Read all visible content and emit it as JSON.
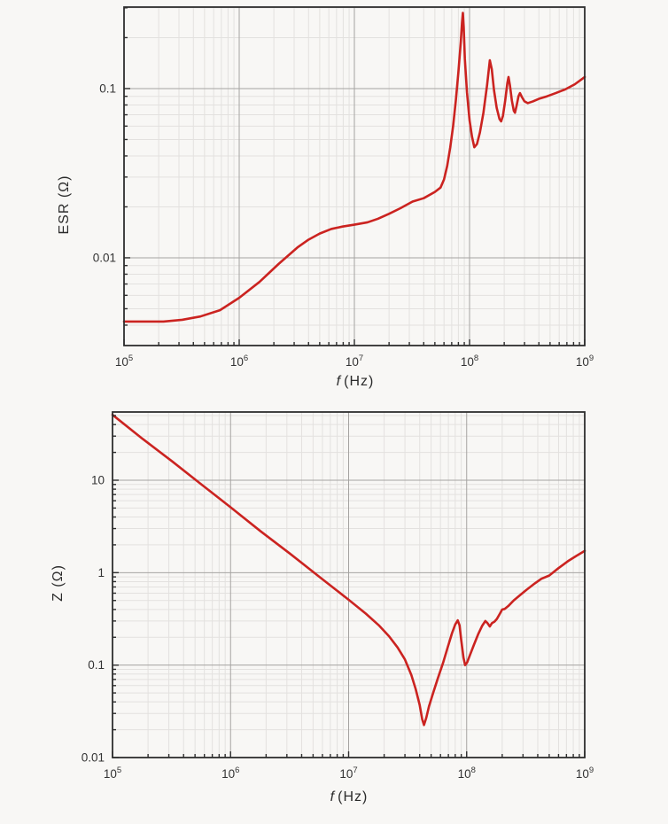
{
  "styles": {
    "page_bg": "#f8f7f5",
    "curve_red": "#cb2320",
    "grid_major": "#a5a3a1",
    "grid_minor": "#e3e1df",
    "frame": "#2e2e2e",
    "text": "#333333"
  },
  "chart_data": [
    {
      "type": "line",
      "name": "esr-vs-frequency",
      "title": "",
      "ylabel": "ESR (Ω)",
      "xlabel_f": "f",
      "xlabel_unit": "(Hz)",
      "xlim": [
        100000.0,
        1000000000.0
      ],
      "ylim": [
        0.00303,
        0.303
      ],
      "grid": true,
      "legend": "none",
      "line_color": "#cb2320",
      "x_ticks": [
        {
          "f": 100000.0,
          "base": "10",
          "exp": "5"
        },
        {
          "f": 1000000.0,
          "base": "10",
          "exp": "6"
        },
        {
          "f": 10000000.0,
          "base": "10",
          "exp": "7"
        },
        {
          "f": 100000000.0,
          "base": "10",
          "exp": "8"
        },
        {
          "f": 1000000000.0,
          "base": "10",
          "exp": "9"
        }
      ],
      "y_ticks": [
        {
          "v": 0.1,
          "label": "0.1"
        },
        {
          "v": 0.01,
          "label": "0.01"
        }
      ],
      "series": [
        {
          "name": "ESR",
          "points": [
            [
              100000.0,
              0.0042
            ],
            [
              150000.0,
              0.0042
            ],
            [
              220000.0,
              0.0042
            ],
            [
              320000.0,
              0.0043
            ],
            [
              460000.0,
              0.0045
            ],
            [
              680000.0,
              0.0049
            ],
            [
              1000000.0,
              0.0058
            ],
            [
              1500000.0,
              0.0072
            ],
            [
              2200000.0,
              0.0092
            ],
            [
              3200000.0,
              0.0115
            ],
            [
              4000000.0,
              0.0128
            ],
            [
              5000000.0,
              0.0139
            ],
            [
              6300000.0,
              0.0148
            ],
            [
              7900000.0,
              0.0153
            ],
            [
              10000000.0,
              0.0157
            ],
            [
              13000000.0,
              0.0162
            ],
            [
              16000000.0,
              0.017
            ],
            [
              20000000.0,
              0.0182
            ],
            [
              25000000.0,
              0.0196
            ],
            [
              32000000.0,
              0.0215
            ],
            [
              40000000.0,
              0.0225
            ],
            [
              50000000.0,
              0.0245
            ],
            [
              56000000.0,
              0.026
            ],
            [
              60000000.0,
              0.029
            ],
            [
              64000000.0,
              0.035
            ],
            [
              68000000.0,
              0.045
            ],
            [
              72000000.0,
              0.06
            ],
            [
              76000000.0,
              0.085
            ],
            [
              80000000.0,
              0.125
            ],
            [
              84000000.0,
              0.19
            ],
            [
              86000000.0,
              0.245
            ],
            [
              87500000.0,
              0.28
            ],
            [
              89000000.0,
              0.23
            ],
            [
              91000000.0,
              0.15
            ],
            [
              95000000.0,
              0.095
            ],
            [
              100000000.0,
              0.065
            ],
            [
              105000000.0,
              0.052
            ],
            [
              110000000.0,
              0.045
            ],
            [
              116000000.0,
              0.047
            ],
            [
              123000000.0,
              0.055
            ],
            [
              132000000.0,
              0.072
            ],
            [
              142000000.0,
              0.105
            ],
            [
              150000000.0,
              0.147
            ],
            [
              156000000.0,
              0.13
            ],
            [
              163000000.0,
              0.098
            ],
            [
              172000000.0,
              0.077
            ],
            [
              182000000.0,
              0.066
            ],
            [
              188000000.0,
              0.064
            ],
            [
              195000000.0,
              0.069
            ],
            [
              204000000.0,
              0.085
            ],
            [
              213000000.0,
              0.108
            ],
            [
              218000000.0,
              0.117
            ],
            [
              224000000.0,
              0.105
            ],
            [
              233000000.0,
              0.085
            ],
            [
              242000000.0,
              0.074
            ],
            [
              248000000.0,
              0.072
            ],
            [
              256000000.0,
              0.079
            ],
            [
              266000000.0,
              0.09
            ],
            [
              274000000.0,
              0.094
            ],
            [
              285000000.0,
              0.089
            ],
            [
              300000000.0,
              0.084
            ],
            [
              320000000.0,
              0.082
            ],
            [
              355000000.0,
              0.084
            ],
            [
              400000000.0,
              0.087
            ],
            [
              470000000.0,
              0.09
            ],
            [
              560000000.0,
              0.094
            ],
            [
              680000000.0,
              0.099
            ],
            [
              820000000.0,
              0.106
            ],
            [
              1000000000.0,
              0.117
            ]
          ]
        }
      ]
    },
    {
      "type": "line",
      "name": "impedance-vs-frequency",
      "title": "",
      "ylabel": "Z (Ω)",
      "xlabel_f": "f",
      "xlabel_unit": "(Hz)",
      "xlim": [
        100000.0,
        1000000000.0
      ],
      "ylim": [
        0.01,
        54.7
      ],
      "grid": true,
      "legend": "none",
      "line_color": "#cb2320",
      "x_ticks": [
        {
          "f": 100000.0,
          "base": "10",
          "exp": "5"
        },
        {
          "f": 1000000.0,
          "base": "10",
          "exp": "6"
        },
        {
          "f": 10000000.0,
          "base": "10",
          "exp": "7"
        },
        {
          "f": 100000000.0,
          "base": "10",
          "exp": "8"
        },
        {
          "f": 1000000000.0,
          "base": "10",
          "exp": "9"
        }
      ],
      "y_ticks": [
        {
          "v": 10,
          "label": "10"
        },
        {
          "v": 1,
          "label": "1"
        },
        {
          "v": 0.1,
          "label": "0.1"
        },
        {
          "v": 0.01,
          "label": "0.01"
        }
      ],
      "series": [
        {
          "name": "Z",
          "points": [
            [
              100000.0,
              51
            ],
            [
              180000.0,
              28
            ],
            [
              320000.0,
              16
            ],
            [
              560000.0,
              9.1
            ],
            [
              1000000.0,
              5.1
            ],
            [
              1800000.0,
              2.8
            ],
            [
              3200000.0,
              1.6
            ],
            [
              5600000.0,
              0.91
            ],
            [
              10000000.0,
              0.51
            ],
            [
              14000000.0,
              0.36
            ],
            [
              18000000.0,
              0.27
            ],
            [
              22000000.0,
              0.205
            ],
            [
              26000000.0,
              0.155
            ],
            [
              30000000.0,
              0.115
            ],
            [
              34000000.0,
              0.078
            ],
            [
              37000000.0,
              0.055
            ],
            [
              40000000.0,
              0.037
            ],
            [
              42000000.0,
              0.026
            ],
            [
              43500000.0,
              0.0225
            ],
            [
              45500000.0,
              0.027
            ],
            [
              48000000.0,
              0.036
            ],
            [
              52000000.0,
              0.05
            ],
            [
              57000000.0,
              0.072
            ],
            [
              63000000.0,
              0.105
            ],
            [
              69000000.0,
              0.155
            ],
            [
              75000000.0,
              0.22
            ],
            [
              80000000.0,
              0.275
            ],
            [
              84000000.0,
              0.305
            ],
            [
              87000000.0,
              0.27
            ],
            [
              90000000.0,
              0.185
            ],
            [
              94000000.0,
              0.12
            ],
            [
              97000000.0,
              0.1
            ],
            [
              101000000.0,
              0.107
            ],
            [
              107000000.0,
              0.13
            ],
            [
              115000000.0,
              0.165
            ],
            [
              125000000.0,
              0.215
            ],
            [
              135000000.0,
              0.265
            ],
            [
              144000000.0,
              0.3
            ],
            [
              150000000.0,
              0.285
            ],
            [
              157000000.0,
              0.262
            ],
            [
              164000000.0,
              0.285
            ],
            [
              172000000.0,
              0.295
            ],
            [
              180000000.0,
              0.315
            ],
            [
              190000000.0,
              0.355
            ],
            [
              200000000.0,
              0.4
            ],
            [
              210000000.0,
              0.405
            ],
            [
              225000000.0,
              0.435
            ],
            [
              250000000.0,
              0.5
            ],
            [
              280000000.0,
              0.565
            ],
            [
              320000000.0,
              0.65
            ],
            [
              370000000.0,
              0.75
            ],
            [
              430000000.0,
              0.86
            ],
            [
              500000000.0,
              0.93
            ],
            [
              600000000.0,
              1.12
            ],
            [
              720000000.0,
              1.33
            ],
            [
              850000000.0,
              1.52
            ],
            [
              1000000000.0,
              1.72
            ]
          ]
        }
      ]
    }
  ]
}
